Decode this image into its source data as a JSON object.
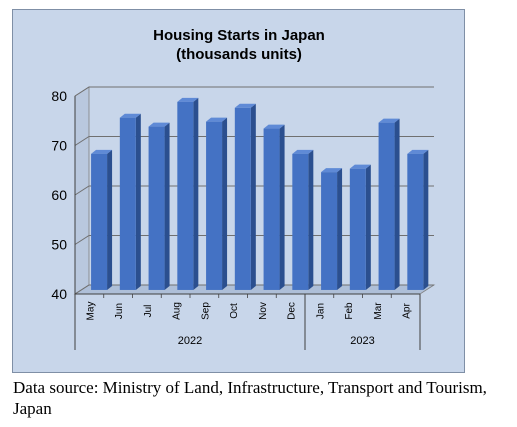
{
  "chart_data": {
    "type": "bar",
    "title_lines": [
      "Housing Starts in Japan",
      "(thousands units)"
    ],
    "categories": [
      "May",
      "Jun",
      "Jul",
      "Aug",
      "Sep",
      "Oct",
      "Nov",
      "Dec",
      "Jan",
      "Feb",
      "Mar",
      "Apr"
    ],
    "values": [
      67.5,
      74.8,
      73.0,
      78.0,
      74.0,
      76.8,
      72.6,
      67.5,
      63.8,
      64.5,
      73.8,
      67.5
    ],
    "year_groups": [
      {
        "label": "2022",
        "count": 8
      },
      {
        "label": "2023",
        "count": 4
      }
    ],
    "yticks": [
      "80",
      "70",
      "60",
      "50",
      "40"
    ],
    "ylim": [
      40,
      80
    ],
    "grid": true,
    "legend": "none",
    "bar_color": "#4472c4"
  },
  "source": "Data source: Ministry of Land, Infrastructure, Transport and Tourism, Japan"
}
